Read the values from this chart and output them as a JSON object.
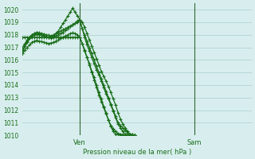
{
  "title": "",
  "xlabel": "Pression niveau de la mer( hPa )",
  "ylabel": "",
  "background_color": "#d8eeee",
  "grid_color": "#aacccc",
  "line_color": "#1a6e1a",
  "ylim": [
    1010,
    1020.5
  ],
  "xlim": [
    0,
    96
  ],
  "yticks": [
    1010,
    1011,
    1012,
    1013,
    1014,
    1015,
    1016,
    1017,
    1018,
    1019,
    1020
  ],
  "ven_x": 24,
  "sam_x": 72,
  "series": {
    "s1": [
      1016.5,
      1017.2,
      1017.5,
      1017.8,
      1018.0,
      1018.1,
      1018.2,
      1018.15,
      1018.1,
      1018.05,
      1018.0,
      1017.95,
      1017.9,
      1018.0,
      1018.1,
      1018.2,
      1018.3,
      1018.4,
      1018.5,
      1018.6,
      1018.7,
      1018.8,
      1018.9,
      1019.0,
      1019.1,
      1018.5,
      1018.0,
      1017.5,
      1017.0,
      1016.5,
      1016.0,
      1015.5,
      1015.0,
      1014.5,
      1014.0,
      1013.5,
      1013.0,
      1012.5,
      1012.0,
      1011.5,
      1011.0,
      1010.8,
      1010.6,
      1010.4,
      1010.2,
      1010.1,
      1010.05,
      1010.0
    ],
    "s2": [
      1017.0,
      1017.3,
      1017.6,
      1017.8,
      1018.0,
      1018.1,
      1018.15,
      1018.1,
      1018.0,
      1017.9,
      1017.85,
      1017.8,
      1017.75,
      1017.8,
      1017.9,
      1018.0,
      1018.1,
      1018.2,
      1018.35,
      1018.5,
      1018.65,
      1018.8,
      1018.9,
      1019.1,
      1019.2,
      1019.0,
      1018.6,
      1018.1,
      1017.6,
      1017.1,
      1016.6,
      1016.1,
      1015.6,
      1015.1,
      1014.7,
      1014.3,
      1013.9,
      1013.4,
      1012.9,
      1012.4,
      1011.8,
      1011.3,
      1010.9,
      1010.6,
      1010.3,
      1010.1,
      1010.05,
      1010.0
    ],
    "s3_peak": [
      1016.8,
      1017.1,
      1017.4,
      1017.7,
      1017.9,
      1018.0,
      1018.05,
      1018.0,
      1017.95,
      1017.9,
      1017.85,
      1017.8,
      1017.85,
      1017.9,
      1018.1,
      1018.3,
      1018.6,
      1018.9,
      1019.2,
      1019.5,
      1019.8,
      1020.1,
      1019.8,
      1019.5,
      1019.2,
      1018.5,
      1017.8,
      1017.2,
      1016.7,
      1016.2,
      1015.7,
      1015.2,
      1014.8,
      1014.3,
      1013.8,
      1013.3,
      1012.9,
      1012.4,
      1011.9,
      1011.4,
      1010.9,
      1010.6,
      1010.3,
      1010.1,
      1010.05,
      1010.02,
      1010.01,
      1010.0
    ],
    "s4_straight": [
      1017.8,
      1017.8,
      1017.8,
      1017.8,
      1017.8,
      1017.8,
      1017.8,
      1017.8,
      1017.8,
      1017.8,
      1017.8,
      1017.8,
      1017.8,
      1017.8,
      1017.8,
      1017.8,
      1017.8,
      1017.8,
      1017.8,
      1017.8,
      1017.8,
      1017.8,
      1017.8,
      1017.8,
      1017.8,
      1017.3,
      1016.8,
      1016.2,
      1015.7,
      1015.1,
      1014.6,
      1014.0,
      1013.4,
      1012.9,
      1012.3,
      1011.8,
      1011.2,
      1010.7,
      1010.3,
      1010.1,
      1010.05,
      1010.02,
      1010.01,
      1010.0,
      1010.0,
      1010.0,
      1010.0,
      1010.0
    ],
    "s5_mid": [
      1016.5,
      1016.8,
      1017.0,
      1017.2,
      1017.4,
      1017.5,
      1017.55,
      1017.5,
      1017.45,
      1017.4,
      1017.35,
      1017.3,
      1017.35,
      1017.4,
      1017.5,
      1017.6,
      1017.7,
      1017.8,
      1017.9,
      1018.0,
      1018.1,
      1018.15,
      1018.1,
      1018.0,
      1017.8,
      1017.3,
      1016.7,
      1016.2,
      1015.6,
      1015.0,
      1014.4,
      1013.8,
      1013.2,
      1012.7,
      1012.2,
      1011.7,
      1011.2,
      1010.8,
      1010.5,
      1010.3,
      1010.15,
      1010.1,
      1010.05,
      1010.02,
      1010.01,
      1010.0,
      1010.0,
      1010.0
    ]
  }
}
